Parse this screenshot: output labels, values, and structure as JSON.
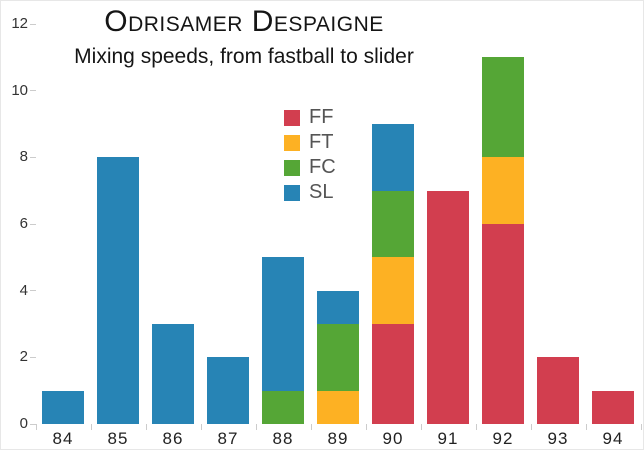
{
  "header": {
    "title": "Odrisamer Despaigne",
    "subtitle": "Mixing speeds, from fastball to slider"
  },
  "colors": {
    "FF": "#d23e4f",
    "FT": "#fdb123",
    "FC": "#55a636",
    "SL": "#2784b5",
    "tick": "#cccccc",
    "axis_text": "#333333",
    "legend_text": "#555555"
  },
  "chart_data": {
    "type": "bar",
    "stacked": true,
    "title": "Odrisamer Despaigne",
    "subtitle": "Mixing speeds, from fastball to slider",
    "xlabel": "",
    "ylabel": "",
    "categories": [
      "84",
      "85",
      "86",
      "87",
      "88",
      "89",
      "90",
      "91",
      "92",
      "93",
      "94"
    ],
    "series": [
      {
        "name": "FF",
        "color": "#d23e4f",
        "values": [
          0,
          0,
          0,
          0,
          0,
          0,
          3,
          7,
          6,
          2,
          1
        ]
      },
      {
        "name": "FT",
        "color": "#fdb123",
        "values": [
          0,
          0,
          0,
          0,
          0,
          1,
          2,
          0,
          2,
          0,
          0
        ]
      },
      {
        "name": "FC",
        "color": "#55a636",
        "values": [
          0,
          0,
          0,
          0,
          1,
          2,
          2,
          0,
          3,
          0,
          0
        ]
      },
      {
        "name": "SL",
        "color": "#2784b5",
        "values": [
          1,
          8,
          3,
          2,
          4,
          1,
          2,
          0,
          0,
          0,
          0
        ]
      }
    ],
    "stack_order_bottom_to_top": [
      "FF",
      "FT",
      "FC",
      "SL"
    ],
    "totals": [
      1,
      8,
      3,
      2,
      5,
      4,
      9,
      7,
      11,
      2,
      1
    ],
    "yticks": [
      0,
      2,
      4,
      6,
      8,
      10,
      12
    ],
    "ylim": [
      0,
      12
    ],
    "grid": false,
    "legend": {
      "position": "upper-left-of-center",
      "entries": [
        "FF",
        "FT",
        "FC",
        "SL"
      ]
    }
  }
}
